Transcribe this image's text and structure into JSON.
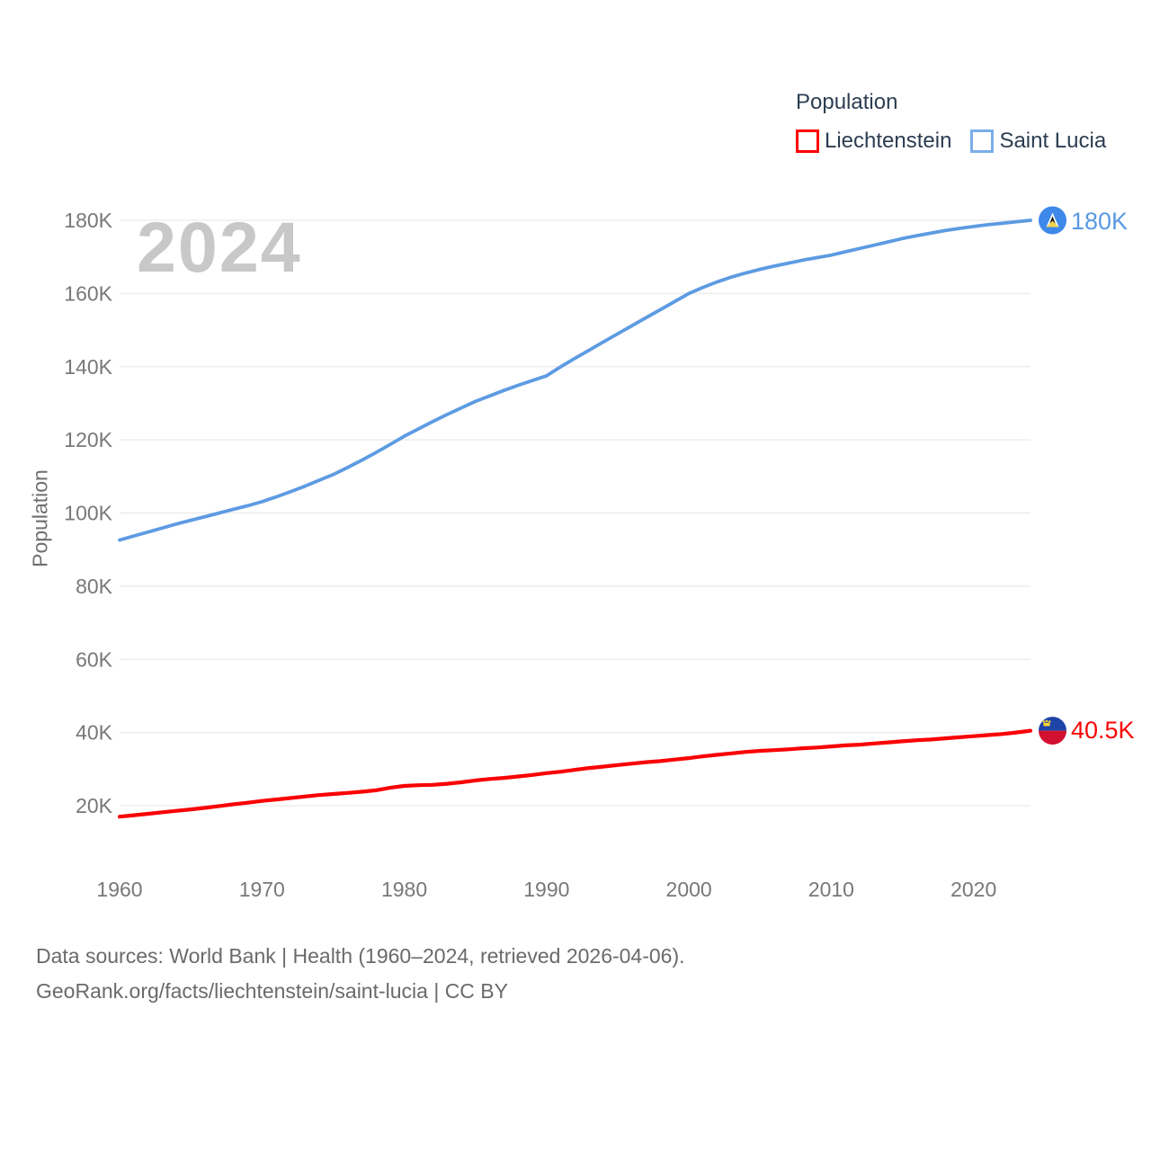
{
  "watermark": "2024",
  "legend": {
    "title": "Population",
    "items": [
      {
        "label": "Liechtenstein",
        "color": "#ff0000"
      },
      {
        "label": "Saint Lucia",
        "color": "#7badea"
      }
    ]
  },
  "chart_data": {
    "type": "line",
    "title": "Population",
    "ylabel": "Population",
    "xlabel": "",
    "grid": true,
    "legend_position": "top-right",
    "watermark_year": "2024",
    "x_range": [
      1960,
      2024
    ],
    "ylim": [
      13000,
      190000
    ],
    "x_ticks": [
      1960,
      1970,
      1980,
      1990,
      2000,
      2010,
      2020
    ],
    "y_ticks": [
      {
        "value": 20000,
        "label": "20K"
      },
      {
        "value": 40000,
        "label": "40K"
      },
      {
        "value": 60000,
        "label": "60K"
      },
      {
        "value": 80000,
        "label": "80K"
      },
      {
        "value": 100000,
        "label": "100K"
      },
      {
        "value": 120000,
        "label": "120K"
      },
      {
        "value": 140000,
        "label": "140K"
      },
      {
        "value": 160000,
        "label": "160K"
      },
      {
        "value": 180000,
        "label": "180K"
      }
    ],
    "years": [
      1960,
      1961,
      1962,
      1963,
      1964,
      1965,
      1966,
      1967,
      1968,
      1969,
      1970,
      1971,
      1972,
      1973,
      1974,
      1975,
      1976,
      1977,
      1978,
      1979,
      1980,
      1981,
      1982,
      1983,
      1984,
      1985,
      1986,
      1987,
      1988,
      1989,
      1990,
      1991,
      1992,
      1993,
      1994,
      1995,
      1996,
      1997,
      1998,
      1999,
      2000,
      2001,
      2002,
      2003,
      2004,
      2005,
      2006,
      2007,
      2008,
      2009,
      2010,
      2011,
      2012,
      2013,
      2014,
      2015,
      2016,
      2017,
      2018,
      2019,
      2020,
      2021,
      2022,
      2023,
      2024
    ],
    "series": [
      {
        "name": "Liechtenstein",
        "color": "#fb0000",
        "end_label": "40.5K",
        "end_value": 40500,
        "values": [
          17000,
          17400,
          17800,
          18200,
          18600,
          19000,
          19400,
          19900,
          20400,
          20800,
          21300,
          21700,
          22100,
          22500,
          22900,
          23200,
          23500,
          23800,
          24200,
          24900,
          25400,
          25600,
          25700,
          26000,
          26400,
          26900,
          27300,
          27600,
          28000,
          28400,
          28900,
          29300,
          29800,
          30300,
          30700,
          31100,
          31500,
          31900,
          32200,
          32600,
          33000,
          33500,
          33900,
          34300,
          34700,
          35000,
          35200,
          35400,
          35700,
          35900,
          36200,
          36500,
          36700,
          37000,
          37300,
          37600,
          37900,
          38100,
          38400,
          38700,
          39000,
          39300,
          39600,
          40000,
          40500
        ]
      },
      {
        "name": "Saint Lucia",
        "color": "#5d9be2",
        "end_label": "180K",
        "end_value": 180000,
        "values": [
          92600,
          93700,
          94800,
          95900,
          97000,
          98000,
          99000,
          100000,
          101000,
          102000,
          103100,
          104400,
          105800,
          107300,
          108900,
          110500,
          112400,
          114400,
          116500,
          118700,
          121000,
          123000,
          125000,
          126900,
          128700,
          130500,
          132000,
          133500,
          134900,
          136200,
          137500,
          140000,
          142300,
          144500,
          146800,
          149000,
          151200,
          153400,
          155600,
          157800,
          160000,
          161700,
          163200,
          164500,
          165600,
          166600,
          167500,
          168300,
          169100,
          169800,
          170500,
          171400,
          172300,
          173200,
          174100,
          175000,
          175800,
          176500,
          177200,
          177800,
          178300,
          178800,
          179200,
          179600,
          180000
        ]
      }
    ]
  },
  "footer": {
    "line1": "Data sources: World Bank | Health (1960–2024, retrieved 2026-04-06).",
    "line2": "GeoRank.org/facts/liechtenstein/saint-lucia | CC BY"
  },
  "colors": {
    "liechtenstein_line": "#fb0000",
    "saint_lucia_line": "#5d9be2",
    "gridline": "#ededed",
    "tick_text": "#787878",
    "watermark": "#c8c8c8",
    "legend_text": "#2c3d52",
    "footer_text": "#6a6a6a"
  }
}
